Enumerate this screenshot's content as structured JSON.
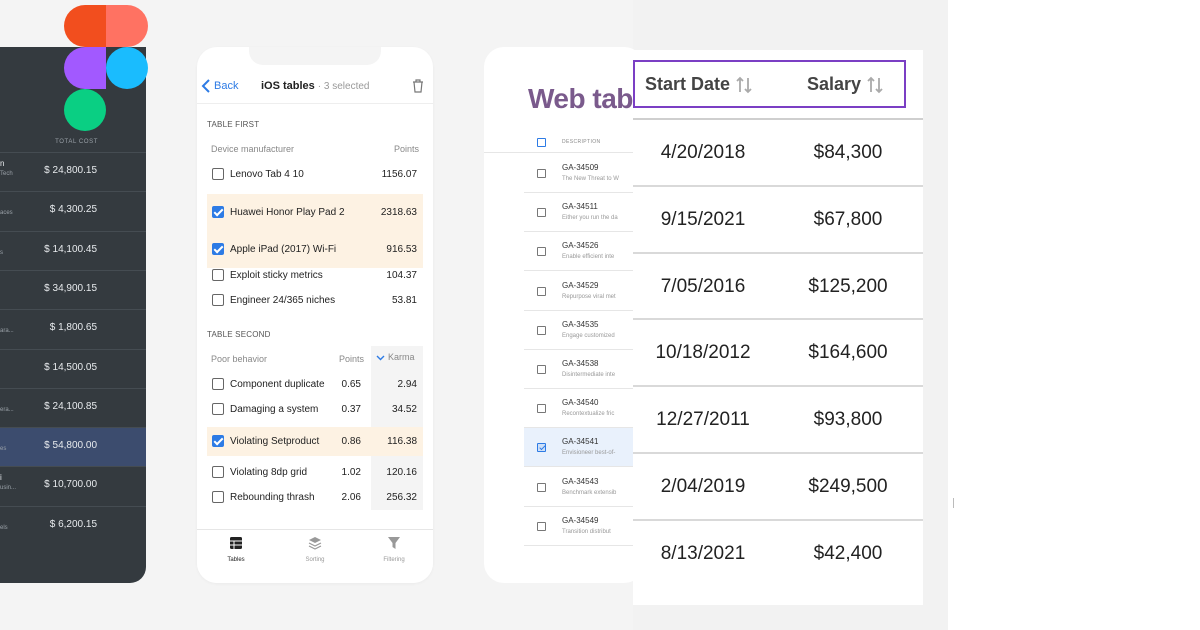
{
  "dark_table": {
    "header": "TOTAL COST",
    "rows": [
      {
        "name": "n",
        "sub": "Tech",
        "value": "$ 24,800.15",
        "selected": false
      },
      {
        "name": "",
        "sub": "aces",
        "value": "$ 4,300.25",
        "selected": false
      },
      {
        "name": "",
        "sub": "s",
        "value": "$ 14,100.45",
        "selected": false
      },
      {
        "name": "",
        "sub": "",
        "value": "$ 34,900.15",
        "selected": false
      },
      {
        "name": "",
        "sub": "ara...",
        "value": "$ 1,800.65",
        "selected": false
      },
      {
        "name": "",
        "sub": "",
        "value": "$ 14,500.05",
        "selected": false
      },
      {
        "name": "",
        "sub": "era...",
        "value": "$ 24,100.85",
        "selected": false
      },
      {
        "name": "",
        "sub": "es",
        "value": "$ 54,800.00",
        "selected": true
      },
      {
        "name": "i",
        "sub": "usin...",
        "value": "$ 10,700.00",
        "selected": false
      },
      {
        "name": "",
        "sub": "els",
        "value": "$ 6,200.15",
        "selected": false
      }
    ]
  },
  "ios": {
    "back_label": "Back",
    "title": "iOS tables",
    "selected_count": "· 3 selected",
    "table_first": {
      "section_label": "TABLE FIRST",
      "col1": "Device manufacturer",
      "col2": "Points",
      "rows": [
        {
          "label": "Lenovo Tab 4 10",
          "points": "1156.07",
          "checked": false
        },
        {
          "label": "Huawei Honor Play Pad 2",
          "points": "2318.63",
          "checked": true
        },
        {
          "label": "Apple iPad (2017) Wi-Fi",
          "points": "916.53",
          "checked": true
        },
        {
          "label": "Exploit sticky metrics",
          "points": "104.37",
          "checked": false
        },
        {
          "label": "Engineer 24/365 niches",
          "points": "53.81",
          "checked": false
        }
      ]
    },
    "table_second": {
      "section_label": "TABLE SECOND",
      "col1": "Poor behavior",
      "col2": "Points",
      "col3": "Karma",
      "rows": [
        {
          "label": "Component duplicate",
          "points": "0.65",
          "karma": "2.94",
          "checked": false
        },
        {
          "label": "Damaging a system",
          "points": "0.37",
          "karma": "34.52",
          "checked": false
        },
        {
          "label": "Violating Setproduct",
          "points": "0.86",
          "karma": "116.38",
          "checked": true
        },
        {
          "label": "Violating 8dp grid",
          "points": "1.02",
          "karma": "120.16",
          "checked": false
        },
        {
          "label": "Rebounding thrash",
          "points": "2.06",
          "karma": "256.32",
          "checked": false
        }
      ]
    },
    "tabs": [
      {
        "label": "Tables",
        "icon": "table-icon",
        "active": true
      },
      {
        "label": "Sorting",
        "icon": "layers-icon",
        "active": false
      },
      {
        "label": "Filtering",
        "icon": "filter-icon",
        "active": false
      }
    ]
  },
  "web": {
    "title": "Web tab",
    "header_label": "DESCRIPTION",
    "rows": [
      {
        "id": "GA-34509",
        "desc": "The New Threat to W",
        "checked": false
      },
      {
        "id": "GA-34511",
        "desc": "Either you run the da",
        "checked": false
      },
      {
        "id": "GA-34526",
        "desc": "Enable efficient inte",
        "checked": false
      },
      {
        "id": "GA-34529",
        "desc": "Repurpose viral met",
        "checked": false
      },
      {
        "id": "GA-34535",
        "desc": "Engage customized",
        "checked": false
      },
      {
        "id": "GA-34538",
        "desc": "Disintermediate inte",
        "checked": false
      },
      {
        "id": "GA-34540",
        "desc": "Recontextualize fric",
        "checked": false
      },
      {
        "id": "GA-34541",
        "desc": "Envisioneer best-of-",
        "checked": true
      },
      {
        "id": "GA-34543",
        "desc": "Benchmark extensib",
        "checked": false
      },
      {
        "id": "GA-34549",
        "desc": "Transition distribut",
        "checked": false
      }
    ]
  },
  "zoom_table": {
    "col_start_date": "Start Date",
    "col_salary": "Salary",
    "rows": [
      {
        "date": "4/20/2018",
        "salary": "$84,300"
      },
      {
        "date": "9/15/2021",
        "salary": "$67,800"
      },
      {
        "date": "7/05/2016",
        "salary": "$125,200"
      },
      {
        "date": "10/18/2012",
        "salary": "$164,600"
      },
      {
        "date": "12/27/2011",
        "salary": "$93,800"
      },
      {
        "date": "2/04/2019",
        "salary": "$249,500"
      },
      {
        "date": "8/13/2021",
        "salary": "$42,400"
      }
    ]
  },
  "colors": {
    "figma_red": "#f24e1e",
    "figma_coral": "#ff7262",
    "figma_purple": "#a259ff",
    "figma_blue": "#1abcfe",
    "figma_green": "#0acf83",
    "ios_accent": "#2d7be5",
    "web_title": "#7a5a8c",
    "zoom_border": "#7b3fc4"
  }
}
